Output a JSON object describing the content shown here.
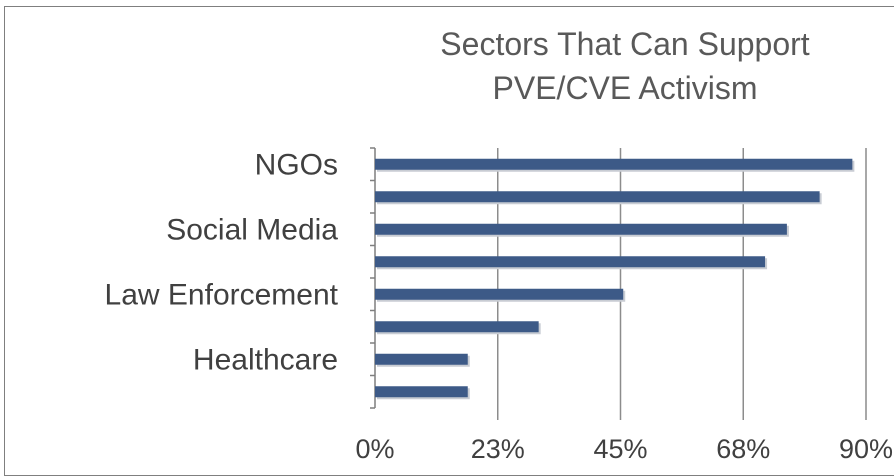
{
  "chart_data": {
    "type": "bar",
    "orientation": "horizontal",
    "title_lines": [
      "Sectors That Can Support",
      "PVE/CVE Activism"
    ],
    "category_labels": [
      "NGOs",
      "",
      "Social Media",
      "",
      "Law Enforcement",
      "",
      "Healthcare",
      ""
    ],
    "values": [
      87.5,
      81.5,
      75.5,
      71.5,
      45.5,
      30.0,
      17.0,
      17.0
    ],
    "x_tick_labels": [
      "0%",
      "23%",
      "45%",
      "68%",
      "90%"
    ],
    "x_ticks": [
      0,
      22.5,
      45,
      67.5,
      90
    ],
    "xlim": [
      0,
      90
    ],
    "grid": "vertical",
    "legend": "none",
    "bar_color": "#3d5a87",
    "grid_color": "#8c8c8c"
  }
}
